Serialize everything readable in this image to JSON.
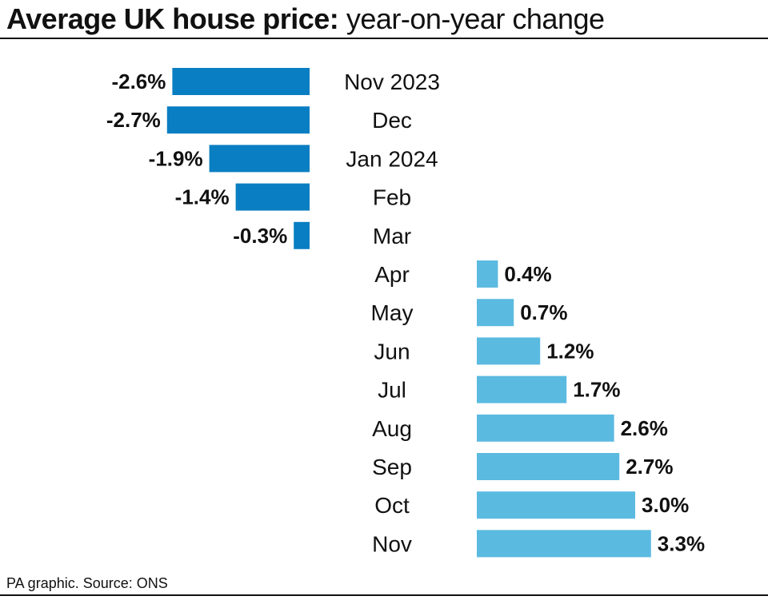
{
  "title_bold": "Average UK house price:",
  "title_regular": "year-on-year change",
  "source": "PA graphic. Source: ONS",
  "chart_data": {
    "type": "bar",
    "orientation": "horizontal",
    "title": "Average UK house price: year-on-year change",
    "categories": [
      "Nov 2023",
      "Dec",
      "Jan 2024",
      "Feb",
      "Mar",
      "Apr",
      "May",
      "Jun",
      "Jul",
      "Aug",
      "Sep",
      "Oct",
      "Nov"
    ],
    "values": [
      -2.6,
      -2.7,
      -1.9,
      -1.4,
      -0.3,
      0.4,
      0.7,
      1.2,
      1.7,
      2.6,
      2.7,
      3.0,
      3.3
    ],
    "value_labels": [
      "-2.6%",
      "-2.7%",
      "-1.9%",
      "-1.4%",
      "-0.3%",
      "0.4%",
      "0.7%",
      "1.2%",
      "1.7%",
      "2.6%",
      "2.7%",
      "3.0%",
      "3.3%"
    ],
    "unit": "%",
    "grid": false,
    "legend": "none",
    "colors": {
      "negative": "#0a7ec2",
      "positive": "#5bbae0"
    }
  }
}
